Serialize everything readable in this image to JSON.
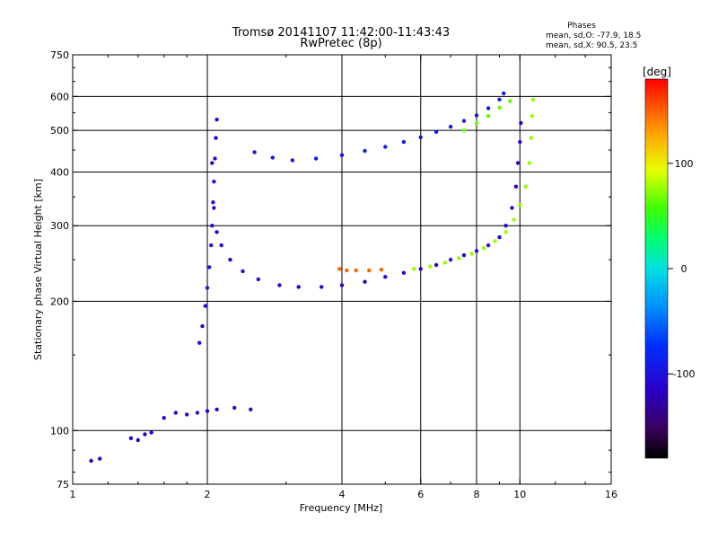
{
  "chart_data": {
    "type": "scatter",
    "title": "Tromsø 20141107 11:42:00-11:43:43",
    "subtitle": "RwPretec (8p)",
    "phase_info": {
      "heading": "Phases",
      "line_o": "mean, sd,O: -77.9, 18.5",
      "line_x": "mean, sd,X:  90.5, 23.5"
    },
    "xlabel": "Frequency [MHz]",
    "ylabel": "Stationary phase Virtual Height [km]",
    "xscale": "log",
    "yscale": "log",
    "xlim": [
      1,
      16
    ],
    "ylim": [
      75,
      750
    ],
    "xticks": [
      1,
      2,
      4,
      6,
      8,
      10,
      16
    ],
    "yticks": [
      75,
      100,
      200,
      300,
      400,
      500,
      600,
      750
    ],
    "xgrid": [
      2,
      4,
      6,
      8,
      10
    ],
    "ygrid": [
      100,
      200,
      300,
      400,
      500,
      600
    ],
    "colorbar": {
      "label": "[deg]",
      "range": [
        -180,
        180
      ],
      "ticks": [
        -100,
        0,
        100
      ]
    },
    "traces": [
      {
        "trace": "O-mode F-layer trace",
        "color_value": -110,
        "points": [
          [
            2.05,
            420
          ],
          [
            2.07,
            330
          ],
          [
            2.1,
            290
          ],
          [
            2.15,
            270
          ],
          [
            2.25,
            250
          ],
          [
            2.4,
            235
          ],
          [
            2.6,
            225
          ],
          [
            2.9,
            218
          ],
          [
            3.2,
            216
          ],
          [
            3.6,
            216
          ],
          [
            4.0,
            218
          ],
          [
            4.5,
            222
          ],
          [
            5.0,
            228
          ],
          [
            5.5,
            233
          ],
          [
            6.0,
            238
          ],
          [
            6.5,
            243
          ],
          [
            7.0,
            250
          ],
          [
            7.5,
            256
          ],
          [
            8.0,
            262
          ],
          [
            8.5,
            270
          ],
          [
            9.0,
            282
          ],
          [
            9.3,
            300
          ],
          [
            9.6,
            330
          ],
          [
            9.8,
            370
          ],
          [
            9.9,
            420
          ],
          [
            10.0,
            470
          ],
          [
            10.05,
            520
          ]
        ]
      },
      {
        "trace": "X-mode F-layer trace",
        "color_value": 75,
        "points": [
          [
            5.8,
            238
          ],
          [
            6.3,
            241
          ],
          [
            6.8,
            246
          ],
          [
            7.3,
            252
          ],
          [
            7.8,
            258
          ],
          [
            8.3,
            266
          ],
          [
            8.8,
            276
          ],
          [
            9.3,
            290
          ],
          [
            9.7,
            310
          ],
          [
            10.0,
            335
          ],
          [
            10.3,
            370
          ],
          [
            10.5,
            420
          ],
          [
            10.6,
            480
          ],
          [
            10.65,
            540
          ],
          [
            10.7,
            590
          ]
        ]
      },
      {
        "trace": "O-mode upper oblique trace",
        "color_value": -95,
        "points": [
          [
            2.55,
            445
          ],
          [
            2.8,
            432
          ],
          [
            3.1,
            426
          ],
          [
            3.5,
            430
          ],
          [
            4.0,
            438
          ],
          [
            4.5,
            448
          ],
          [
            5.0,
            458
          ],
          [
            5.5,
            470
          ],
          [
            6.0,
            482
          ],
          [
            6.5,
            496
          ],
          [
            7.0,
            510
          ],
          [
            7.5,
            526
          ],
          [
            8.0,
            542
          ],
          [
            8.5,
            563
          ],
          [
            9.0,
            590
          ],
          [
            9.2,
            610
          ]
        ]
      },
      {
        "trace": "X-mode upper oblique trace",
        "color_value": 65,
        "points": [
          [
            7.5,
            500
          ],
          [
            8.0,
            520
          ],
          [
            8.5,
            540
          ],
          [
            9.0,
            565
          ],
          [
            9.5,
            585
          ]
        ]
      },
      {
        "trace": "Spread near 2 MHz",
        "color_value": -100,
        "points": [
          [
            1.92,
            160
          ],
          [
            1.95,
            175
          ],
          [
            1.98,
            195
          ],
          [
            2.0,
            215
          ],
          [
            2.02,
            240
          ],
          [
            2.04,
            270
          ],
          [
            2.05,
            300
          ],
          [
            2.06,
            340
          ],
          [
            2.07,
            380
          ],
          [
            2.08,
            430
          ],
          [
            2.09,
            480
          ],
          [
            2.1,
            530
          ]
        ]
      },
      {
        "trace": "E-region echoes",
        "color_value": -105,
        "points": [
          [
            1.6,
            107
          ],
          [
            1.7,
            110
          ],
          [
            1.8,
            109
          ],
          [
            1.9,
            110
          ],
          [
            2.0,
            111
          ],
          [
            2.1,
            112
          ],
          [
            2.3,
            113
          ],
          [
            2.5,
            112
          ]
        ]
      },
      {
        "trace": "Low-frequency echoes",
        "color_value": -120,
        "points": [
          [
            1.1,
            85
          ],
          [
            1.15,
            86
          ],
          [
            1.35,
            96
          ],
          [
            1.4,
            95
          ],
          [
            1.45,
            98
          ],
          [
            1.5,
            99
          ]
        ]
      },
      {
        "trace": "Orange patch near 4 MHz",
        "color_value": 150,
        "points": [
          [
            3.95,
            238
          ],
          [
            4.1,
            236
          ],
          [
            4.3,
            236
          ],
          [
            4.6,
            236
          ],
          [
            4.9,
            237
          ]
        ]
      }
    ]
  }
}
